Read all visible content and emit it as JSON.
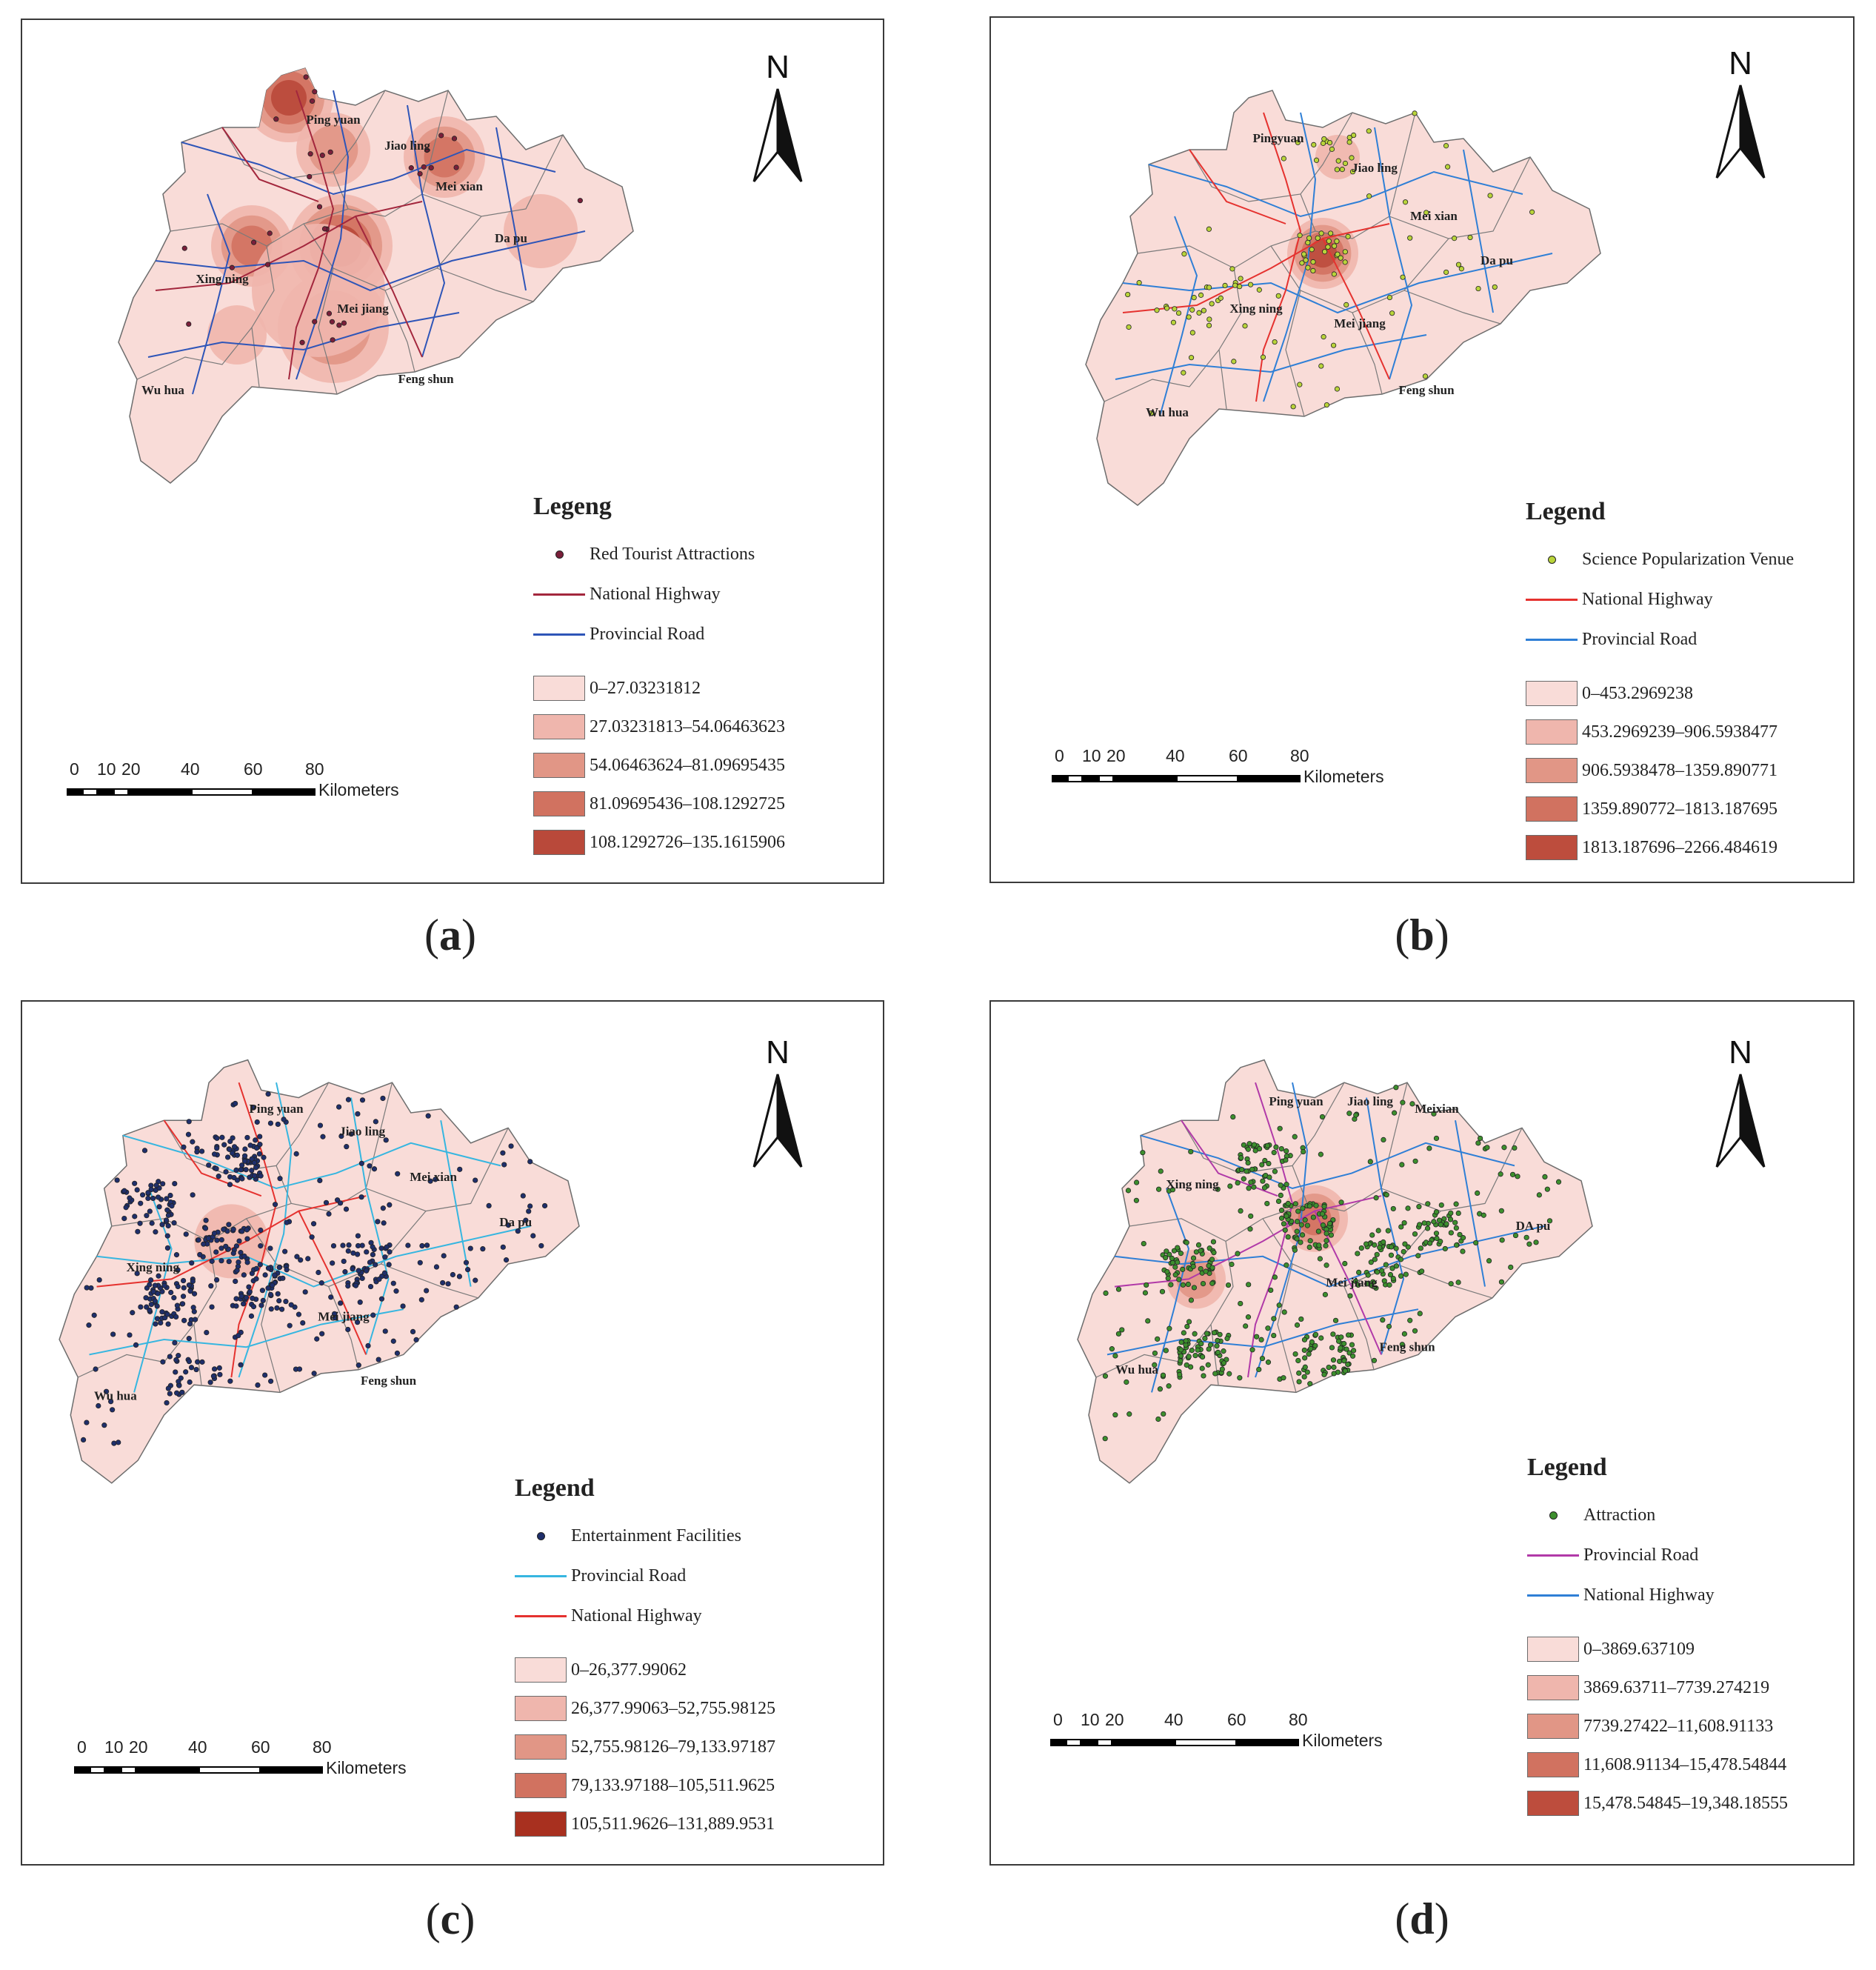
{
  "panels": [
    {
      "id": "a",
      "caption_letter": "a",
      "legend_title": "Legeng",
      "point_label": "Red Tourist Attractions",
      "point_color": "#7a1f3a",
      "road1_label": "National Highway",
      "road1_color": "#a3273d",
      "road2_label": "Provincial Road",
      "road2_color": "#2e55b8",
      "classes": [
        "0–27.03231812",
        "27.03231813–54.06463623",
        "54.06463624–81.09695435",
        "81.09695436–108.1292725",
        "108.1292726–135.1615906"
      ],
      "class_colors": [
        "#f9dcd8",
        "#efb6ad",
        "#e19686",
        "#d17260",
        "#b9493a"
      ],
      "towns": [
        "Ping yuan",
        "Jiao ling",
        "Mei xian",
        "Da pu",
        "Xing ning",
        "Mei jiang",
        "Feng shun",
        "Wu hua"
      ]
    },
    {
      "id": "b",
      "caption_letter": "b",
      "legend_title": "Legend",
      "point_label": "Science Popularization Venue",
      "point_color": "#b9d43a",
      "road1_label": "National Highway",
      "road1_color": "#e5322f",
      "road2_label": "Provincial Road",
      "road2_color": "#2f7fd6",
      "classes": [
        "0–453.2969238",
        "453.2969239–906.5938477",
        "906.5938478–1359.890771",
        "1359.890772–1813.187695",
        "1813.187696–2266.484619"
      ],
      "class_colors": [
        "#f9dcd8",
        "#efb6ad",
        "#e19686",
        "#d17260",
        "#bd4d3d"
      ],
      "towns": [
        "Pingyuan",
        "Jiao ling",
        "Mei xian",
        "Da pu",
        "Xing ning",
        "Mei jiang",
        "Feng shun",
        "Wu hua"
      ]
    },
    {
      "id": "c",
      "caption_letter": "c",
      "legend_title": "Legend",
      "point_label": "Entertainment Facilities",
      "point_color": "#1f2f6b",
      "road1_label": "Provincial Road",
      "road1_color": "#36b6e0",
      "road2_label": "National Highway",
      "road2_color": "#e5322f",
      "classes": [
        "0–26,377.99062",
        "26,377.99063–52,755.98125",
        "52,755.98126–79,133.97187",
        "79,133.97188–105,511.9625",
        "105,511.9626–131,889.9531"
      ],
      "class_colors": [
        "#f9dcd8",
        "#efb6ad",
        "#e19686",
        "#d17260",
        "#a8301f"
      ],
      "towns": [
        "Ping yuan",
        "Jiao ling",
        "Mei xian",
        "Da pu",
        "Xing ning",
        "Mei jiang",
        "Feng shun",
        "Wu hua"
      ]
    },
    {
      "id": "d",
      "caption_letter": "d",
      "legend_title": "Legend",
      "point_label": "Attraction",
      "point_color": "#3d8f2e",
      "road1_label": "Provincial Road",
      "road1_color": "#b13aa8",
      "road2_label": "National Highway",
      "road2_color": "#2f7fd6",
      "classes": [
        "0–3869.637109",
        "3869.63711–7739.274219",
        "7739.27422–11,608.91133",
        "11,608.91134–15,478.54844",
        "15,478.54845–19,348.18555"
      ],
      "class_colors": [
        "#f9dcd8",
        "#efb6ad",
        "#e19686",
        "#d17260",
        "#bd4d3d"
      ],
      "towns": [
        "Ping yuan",
        "Jiao ling",
        "Meixian",
        "DA pu",
        "Xing ning",
        "Mei jiang",
        "Feng shun",
        "Wu hua"
      ]
    }
  ],
  "north_label": "N",
  "scale": {
    "ticks": [
      "0",
      "10",
      "20",
      "40",
      "60",
      "80"
    ],
    "unit": "Kilometers"
  }
}
